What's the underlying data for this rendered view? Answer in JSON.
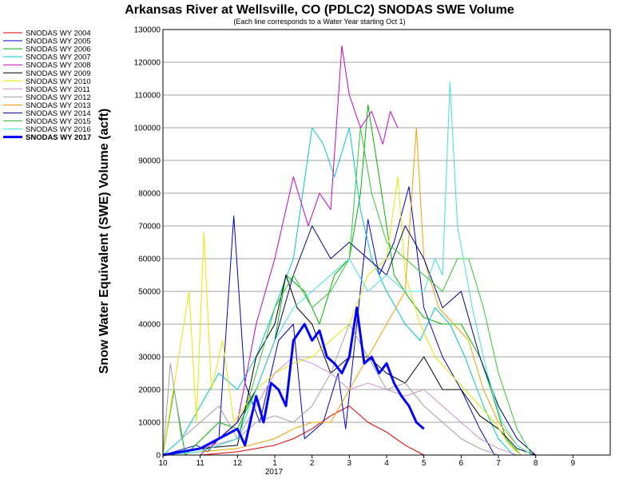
{
  "chart_data": {
    "type": "line",
    "title": "Arkansas River at Wellsville, CO (PDLC2) SNODAS SWE Volume",
    "subtitle": "(Each line corresponds to a Water Year starting Oct 1)",
    "ylabel": "Snow Water Equivalent (SWE) Volume (acft)",
    "xlabel": "",
    "ylim": [
      0,
      130000
    ],
    "y_ticks": [
      "0",
      "10000",
      "20000",
      "30000",
      "40000",
      "50000",
      "60000",
      "70000",
      "80000",
      "90000",
      "100000",
      "110000",
      "120000",
      "130000"
    ],
    "x_ticks": [
      "10",
      "11",
      "12",
      "1",
      "2",
      "3",
      "4",
      "5",
      "6",
      "7",
      "8",
      "9"
    ],
    "x_year_label": "2017",
    "grid": "horizontal",
    "legend_position": "left",
    "series": [
      {
        "name": "SNODAS WY 2004",
        "color": "#e00000",
        "width": 1,
        "points": [
          [
            0.0,
            0
          ],
          [
            1.0,
            0
          ],
          [
            2.0,
            1000
          ],
          [
            3.0,
            3000
          ],
          [
            3.5,
            5000
          ],
          [
            4.0,
            8000
          ],
          [
            4.5,
            12000
          ],
          [
            5.0,
            15000
          ],
          [
            5.5,
            10000
          ],
          [
            6.0,
            7000
          ],
          [
            6.5,
            3000
          ],
          [
            7.0,
            0
          ]
        ]
      },
      {
        "name": "SNODAS WY 2005",
        "color": "#0000c8",
        "width": 1,
        "points": [
          [
            0.0,
            0
          ],
          [
            0.9,
            3000
          ],
          [
            1.2,
            1000
          ],
          [
            1.5,
            5000
          ],
          [
            1.9,
            73000
          ],
          [
            2.2,
            22000
          ],
          [
            2.6,
            10000
          ],
          [
            3.1,
            35000
          ],
          [
            3.5,
            40000
          ],
          [
            3.8,
            5000
          ],
          [
            4.3,
            10000
          ],
          [
            4.7,
            25000
          ],
          [
            4.9,
            8000
          ],
          [
            5.2,
            40000
          ],
          [
            5.5,
            72000
          ],
          [
            5.8,
            55000
          ],
          [
            6.2,
            65000
          ],
          [
            6.6,
            82000
          ],
          [
            7.0,
            45000
          ],
          [
            7.5,
            30000
          ],
          [
            8.0,
            20000
          ],
          [
            8.5,
            8000
          ],
          [
            8.9,
            0
          ]
        ]
      },
      {
        "name": "SNODAS WY 2006",
        "color": "#00b400",
        "width": 1,
        "points": [
          [
            0.0,
            0
          ],
          [
            0.3,
            20000
          ],
          [
            0.6,
            0
          ],
          [
            1.5,
            10000
          ],
          [
            2.0,
            8000
          ],
          [
            2.5,
            20000
          ],
          [
            3.0,
            35000
          ],
          [
            3.3,
            55000
          ],
          [
            3.8,
            50000
          ],
          [
            4.2,
            40000
          ],
          [
            4.6,
            55000
          ],
          [
            5.0,
            60000
          ],
          [
            5.3,
            80000
          ],
          [
            5.5,
            107000
          ],
          [
            5.8,
            85000
          ],
          [
            6.2,
            55000
          ],
          [
            6.6,
            48000
          ],
          [
            7.0,
            42000
          ],
          [
            7.5,
            40000
          ],
          [
            8.0,
            40000
          ],
          [
            8.5,
            30000
          ],
          [
            8.8,
            20000
          ],
          [
            9.2,
            5000
          ],
          [
            9.6,
            0
          ]
        ]
      },
      {
        "name": "SNODAS WY 2007",
        "color": "#00c8c8",
        "width": 1,
        "points": [
          [
            0.0,
            0
          ],
          [
            0.5,
            5000
          ],
          [
            1.0,
            15000
          ],
          [
            1.5,
            25000
          ],
          [
            2.0,
            20000
          ],
          [
            2.5,
            30000
          ],
          [
            3.0,
            45000
          ],
          [
            3.5,
            60000
          ],
          [
            4.0,
            100000
          ],
          [
            4.3,
            95000
          ],
          [
            4.6,
            85000
          ],
          [
            5.0,
            100000
          ],
          [
            5.3,
            75000
          ],
          [
            5.6,
            60000
          ],
          [
            6.0,
            50000
          ],
          [
            6.5,
            40000
          ],
          [
            6.9,
            35000
          ],
          [
            7.3,
            45000
          ],
          [
            7.7,
            40000
          ],
          [
            8.1,
            30000
          ],
          [
            8.6,
            15000
          ],
          [
            9.0,
            5000
          ],
          [
            9.4,
            0
          ]
        ]
      },
      {
        "name": "SNODAS WY 2008",
        "color": "#c800c8",
        "width": 1,
        "points": [
          [
            0.0,
            0
          ],
          [
            1.0,
            0
          ],
          [
            2.0,
            10000
          ],
          [
            2.5,
            40000
          ],
          [
            3.0,
            60000
          ],
          [
            3.5,
            85000
          ],
          [
            3.9,
            70000
          ],
          [
            4.2,
            80000
          ],
          [
            4.5,
            75000
          ],
          [
            4.8,
            125000
          ],
          [
            5.0,
            110000
          ],
          [
            5.3,
            100000
          ],
          [
            5.6,
            105000
          ],
          [
            5.9,
            95000
          ],
          [
            6.1,
            105000
          ],
          [
            6.3,
            100000
          ]
        ]
      },
      {
        "name": "SNODAS WY 2009",
        "color": "#000000",
        "width": 1,
        "points": [
          [
            0.0,
            0
          ],
          [
            1.0,
            2000
          ],
          [
            2.0,
            3000
          ],
          [
            2.5,
            30000
          ],
          [
            3.0,
            40000
          ],
          [
            3.3,
            55000
          ],
          [
            3.6,
            45000
          ],
          [
            4.0,
            40000
          ],
          [
            4.5,
            25000
          ],
          [
            5.0,
            30000
          ],
          [
            5.5,
            30000
          ],
          [
            6.0,
            25000
          ],
          [
            6.5,
            22000
          ],
          [
            7.0,
            30000
          ],
          [
            7.5,
            20000
          ],
          [
            8.0,
            20000
          ],
          [
            8.5,
            12000
          ],
          [
            9.0,
            8000
          ],
          [
            9.5,
            2000
          ],
          [
            10.0,
            0
          ]
        ]
      },
      {
        "name": "SNODAS WY 2010",
        "color": "#e6e600",
        "width": 1,
        "points": [
          [
            0.0,
            0
          ],
          [
            0.7,
            50000
          ],
          [
            0.9,
            10000
          ],
          [
            1.1,
            68000
          ],
          [
            1.3,
            20000
          ],
          [
            1.6,
            35000
          ],
          [
            1.9,
            10000
          ],
          [
            2.5,
            20000
          ],
          [
            3.0,
            25000
          ],
          [
            3.5,
            28000
          ],
          [
            4.0,
            30000
          ],
          [
            4.5,
            35000
          ],
          [
            5.0,
            40000
          ],
          [
            5.5,
            55000
          ],
          [
            6.0,
            60000
          ],
          [
            6.3,
            85000
          ],
          [
            6.5,
            55000
          ],
          [
            6.9,
            40000
          ],
          [
            7.3,
            30000
          ],
          [
            7.7,
            25000
          ],
          [
            8.1,
            20000
          ],
          [
            8.5,
            15000
          ],
          [
            8.9,
            10000
          ],
          [
            9.3,
            3000
          ],
          [
            9.6,
            0
          ]
        ]
      },
      {
        "name": "SNODAS WY 2011",
        "color": "#c896c8",
        "width": 1,
        "points": [
          [
            0.0,
            0
          ],
          [
            1.0,
            2000
          ],
          [
            2.0,
            5000
          ],
          [
            3.0,
            25000
          ],
          [
            3.5,
            30000
          ],
          [
            4.0,
            28000
          ],
          [
            4.5,
            25000
          ],
          [
            5.0,
            20000
          ],
          [
            5.5,
            22000
          ],
          [
            6.0,
            20000
          ],
          [
            6.5,
            18000
          ],
          [
            7.0,
            20000
          ],
          [
            7.5,
            15000
          ],
          [
            8.0,
            10000
          ],
          [
            8.5,
            5000
          ],
          [
            9.0,
            2000
          ],
          [
            9.5,
            0
          ]
        ]
      },
      {
        "name": "SNODAS WY 2012",
        "color": "#a0a0a0",
        "width": 1,
        "points": [
          [
            0.0,
            0
          ],
          [
            0.2,
            28000
          ],
          [
            0.5,
            5000
          ],
          [
            1.0,
            10000
          ],
          [
            1.5,
            15000
          ],
          [
            2.0,
            5000
          ],
          [
            2.5,
            10000
          ],
          [
            3.0,
            12000
          ],
          [
            3.5,
            10000
          ],
          [
            4.0,
            15000
          ],
          [
            4.5,
            25000
          ],
          [
            5.0,
            40000
          ],
          [
            5.5,
            30000
          ],
          [
            6.0,
            20000
          ],
          [
            6.5,
            22000
          ],
          [
            7.0,
            15000
          ],
          [
            7.5,
            10000
          ],
          [
            8.0,
            5000
          ],
          [
            8.5,
            2000
          ],
          [
            9.0,
            0
          ]
        ]
      },
      {
        "name": "SNODAS WY 2013",
        "color": "#f0a000",
        "width": 1,
        "points": [
          [
            0.0,
            0
          ],
          [
            1.0,
            1000
          ],
          [
            2.0,
            2000
          ],
          [
            3.0,
            5000
          ],
          [
            3.5,
            8000
          ],
          [
            4.0,
            10000
          ],
          [
            4.5,
            10000
          ],
          [
            5.0,
            20000
          ],
          [
            5.5,
            30000
          ],
          [
            6.0,
            40000
          ],
          [
            6.5,
            50000
          ],
          [
            6.8,
            100000
          ],
          [
            7.0,
            60000
          ],
          [
            7.4,
            45000
          ],
          [
            7.8,
            40000
          ],
          [
            8.2,
            35000
          ],
          [
            8.6,
            20000
          ],
          [
            9.0,
            10000
          ],
          [
            9.5,
            3000
          ],
          [
            9.9,
            0
          ]
        ]
      },
      {
        "name": "SNODAS WY 2014",
        "color": "#000080",
        "width": 1,
        "points": [
          [
            0.0,
            0
          ],
          [
            1.0,
            2000
          ],
          [
            1.5,
            5000
          ],
          [
            2.0,
            10000
          ],
          [
            2.5,
            20000
          ],
          [
            3.0,
            35000
          ],
          [
            3.5,
            55000
          ],
          [
            4.0,
            70000
          ],
          [
            4.5,
            60000
          ],
          [
            5.0,
            65000
          ],
          [
            5.5,
            60000
          ],
          [
            6.0,
            55000
          ],
          [
            6.5,
            70000
          ],
          [
            7.0,
            60000
          ],
          [
            7.5,
            45000
          ],
          [
            8.0,
            50000
          ],
          [
            8.5,
            30000
          ],
          [
            9.0,
            15000
          ],
          [
            9.5,
            5000
          ],
          [
            10.0,
            0
          ]
        ]
      },
      {
        "name": "SNODAS WY 2015",
        "color": "#32c832",
        "width": 1,
        "points": [
          [
            0.0,
            0
          ],
          [
            1.0,
            1000
          ],
          [
            2.0,
            5000
          ],
          [
            2.5,
            25000
          ],
          [
            3.0,
            45000
          ],
          [
            3.5,
            55000
          ],
          [
            4.0,
            45000
          ],
          [
            4.5,
            50000
          ],
          [
            5.0,
            60000
          ],
          [
            5.3,
            100000
          ],
          [
            5.6,
            80000
          ],
          [
            6.0,
            65000
          ],
          [
            6.5,
            60000
          ],
          [
            7.0,
            55000
          ],
          [
            7.5,
            50000
          ],
          [
            7.9,
            60000
          ],
          [
            8.2,
            60000
          ],
          [
            8.6,
            45000
          ],
          [
            9.0,
            25000
          ],
          [
            9.5,
            8000
          ],
          [
            9.9,
            0
          ]
        ]
      },
      {
        "name": "SNODAS WY 2016",
        "color": "#40e0e0",
        "width": 1,
        "points": [
          [
            0.0,
            0
          ],
          [
            1.0,
            1000
          ],
          [
            2.0,
            5000
          ],
          [
            2.5,
            20000
          ],
          [
            3.0,
            35000
          ],
          [
            3.5,
            45000
          ],
          [
            4.0,
            50000
          ],
          [
            4.5,
            55000
          ],
          [
            5.0,
            60000
          ],
          [
            5.5,
            50000
          ],
          [
            6.0,
            55000
          ],
          [
            6.5,
            50000
          ],
          [
            7.0,
            50000
          ],
          [
            7.3,
            60000
          ],
          [
            7.5,
            55000
          ],
          [
            7.7,
            114000
          ],
          [
            7.9,
            70000
          ],
          [
            8.3,
            45000
          ],
          [
            8.7,
            25000
          ],
          [
            9.1,
            10000
          ],
          [
            9.5,
            3000
          ],
          [
            9.9,
            0
          ]
        ]
      },
      {
        "name": "SNODAS WY 2017",
        "color": "#0000ff",
        "width": 3,
        "points": [
          [
            0.0,
            0
          ],
          [
            0.5,
            1000
          ],
          [
            1.0,
            2000
          ],
          [
            1.5,
            5000
          ],
          [
            2.0,
            8000
          ],
          [
            2.2,
            3000
          ],
          [
            2.5,
            18000
          ],
          [
            2.7,
            10000
          ],
          [
            2.9,
            22000
          ],
          [
            3.1,
            20000
          ],
          [
            3.3,
            15000
          ],
          [
            3.5,
            35000
          ],
          [
            3.8,
            40000
          ],
          [
            4.0,
            35000
          ],
          [
            4.2,
            38000
          ],
          [
            4.4,
            30000
          ],
          [
            4.6,
            28000
          ],
          [
            4.8,
            25000
          ],
          [
            5.0,
            30000
          ],
          [
            5.2,
            45000
          ],
          [
            5.4,
            28000
          ],
          [
            5.6,
            30000
          ],
          [
            5.8,
            25000
          ],
          [
            6.0,
            28000
          ],
          [
            6.2,
            22000
          ],
          [
            6.4,
            18000
          ],
          [
            6.6,
            15000
          ],
          [
            6.8,
            10000
          ],
          [
            7.0,
            8000
          ]
        ]
      }
    ]
  }
}
